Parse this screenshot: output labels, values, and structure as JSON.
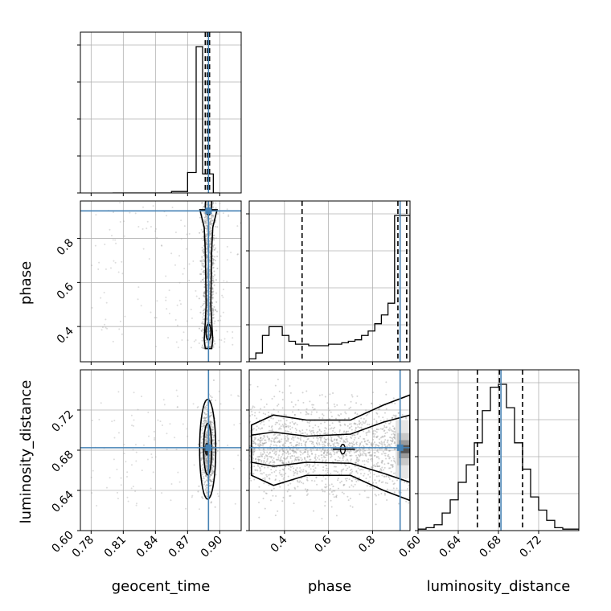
{
  "chart_data": {
    "type": "corner",
    "parameters": [
      "geocent_time",
      "phase",
      "luminosity_distance"
    ],
    "axis_ranges": {
      "geocent_time": [
        0.77,
        0.92
      ],
      "phase": [
        0.24,
        0.97
      ],
      "luminosity_distance": [
        0.6,
        0.76
      ]
    },
    "tick_labels": {
      "geocent_time": [
        "0.78",
        "0.81",
        "0.84",
        "0.87",
        "0.90"
      ],
      "phase": [
        "0.4",
        "0.6",
        "0.8"
      ],
      "luminosity_distance": [
        "0.60",
        "0.64",
        "0.68",
        "0.72"
      ]
    },
    "tick_values": {
      "geocent_time": [
        0.78,
        0.81,
        0.84,
        0.87,
        0.9
      ],
      "phase": [
        0.4,
        0.6,
        0.8
      ],
      "luminosity_distance": [
        0.6,
        0.64,
        0.68,
        0.72
      ]
    },
    "truths": {
      "geocent_time": 0.8895,
      "phase": 0.925,
      "luminosity_distance": 0.6825
    },
    "quantiles": {
      "geocent_time": [
        0.8865,
        0.8885,
        0.8905
      ],
      "phase": [
        0.48,
        0.915,
        0.955
      ],
      "luminosity_distance": [
        0.659,
        0.681,
        0.704
      ]
    },
    "marginals": {
      "geocent_time": {
        "bin_edges": [
          0.8,
          0.83,
          0.855,
          0.87,
          0.878,
          0.884,
          0.894,
          0.9
        ],
        "density": [
          0.0,
          0.0,
          0.01,
          0.14,
          1.0,
          0.13,
          0.0
        ]
      },
      "phase": {
        "bin_edges": [
          0.24,
          0.27,
          0.3,
          0.33,
          0.36,
          0.39,
          0.42,
          0.45,
          0.48,
          0.51,
          0.54,
          0.57,
          0.6,
          0.63,
          0.66,
          0.69,
          0.72,
          0.75,
          0.78,
          0.81,
          0.84,
          0.87,
          0.9,
          0.93,
          0.96,
          0.97
        ],
        "density": [
          0.02,
          0.06,
          0.18,
          0.24,
          0.24,
          0.18,
          0.14,
          0.12,
          0.12,
          0.11,
          0.11,
          0.11,
          0.12,
          0.12,
          0.13,
          0.14,
          0.15,
          0.18,
          0.21,
          0.26,
          0.32,
          0.4,
          1.0,
          1.0,
          1.0
        ]
      },
      "luminosity_distance": {
        "bin_edges": [
          0.6,
          0.608,
          0.616,
          0.624,
          0.632,
          0.64,
          0.648,
          0.656,
          0.664,
          0.672,
          0.68,
          0.688,
          0.696,
          0.704,
          0.712,
          0.72,
          0.728,
          0.736,
          0.744,
          0.752,
          0.76
        ],
        "density": [
          0.01,
          0.02,
          0.04,
          0.12,
          0.21,
          0.33,
          0.45,
          0.6,
          0.82,
          0.98,
          1.0,
          0.84,
          0.6,
          0.42,
          0.23,
          0.14,
          0.07,
          0.02,
          0.01,
          0.01
        ]
      }
    },
    "grid": true,
    "colors": {
      "truth": "#4682b4",
      "samples": "#9e9e9e",
      "contour": "#000000"
    }
  }
}
